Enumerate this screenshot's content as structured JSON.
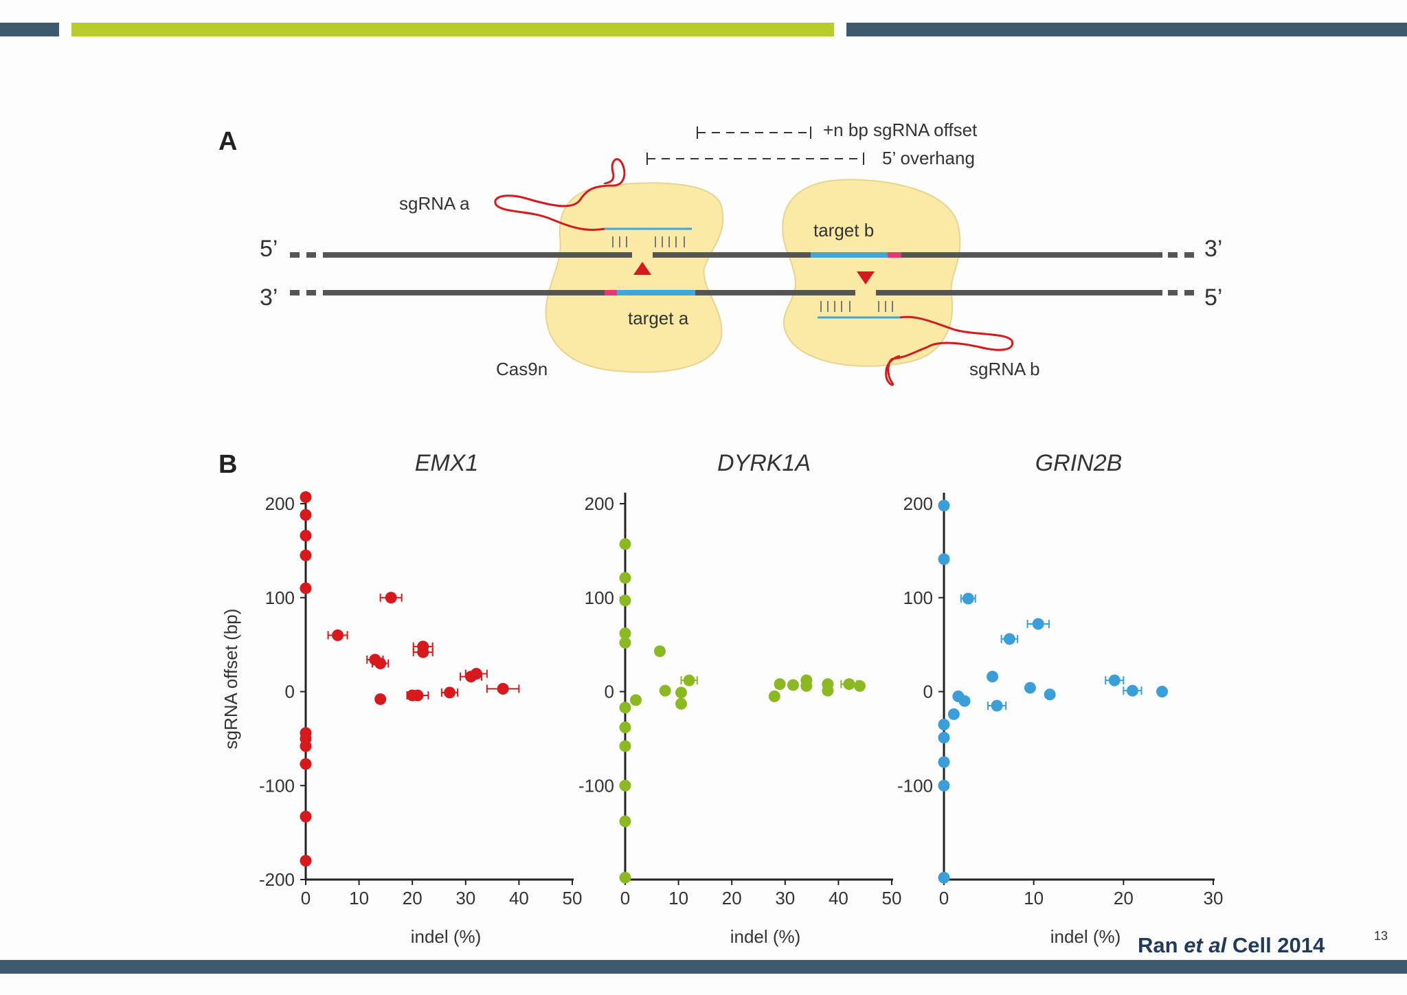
{
  "header_colors": {
    "dark": "#3d5a6e",
    "accent": "#b8cc2e"
  },
  "panel_a": {
    "label": "A",
    "sgrna_offset_label": "+n bp sgRNA offset",
    "overhang_label": "5’ overhang",
    "sgrna_a": "sgRNA a",
    "sgrna_b": "sgRNA b",
    "target_a": "target a",
    "target_b": "target b",
    "cas9n": "Cas9n",
    "top_left": "5’",
    "top_right": "3’",
    "bottom_left": "3’",
    "bottom_right": "5’"
  },
  "panel_b": {
    "label": "B",
    "ylabel": "sgRNA offset (bp)"
  },
  "chart_data": [
    {
      "type": "scatter",
      "title": "EMX1",
      "xlabel": "indel (%)",
      "ylabel": "sgRNA offset (bp)",
      "xlim": [
        0,
        50
      ],
      "ylim": [
        -200,
        200
      ],
      "xticks": [
        0,
        10,
        20,
        30,
        40,
        50
      ],
      "yticks": [
        200,
        100,
        0,
        -100,
        -200
      ],
      "color": "#d7191c",
      "points": [
        {
          "x": 0,
          "y": 207
        },
        {
          "x": 0,
          "y": 188
        },
        {
          "x": 0,
          "y": 166
        },
        {
          "x": 0,
          "y": 145
        },
        {
          "x": 0,
          "y": 110
        },
        {
          "x": 16,
          "y": 100,
          "err": 2
        },
        {
          "x": 6,
          "y": 60,
          "err": 1.8
        },
        {
          "x": 22,
          "y": 48,
          "err": 1.8
        },
        {
          "x": 22,
          "y": 42,
          "err": 1.8
        },
        {
          "x": 13,
          "y": 34,
          "err": 1.5
        },
        {
          "x": 14,
          "y": 30,
          "err": 1.5
        },
        {
          "x": 32,
          "y": 19,
          "err": 2
        },
        {
          "x": 31,
          "y": 16,
          "err": 2
        },
        {
          "x": 37,
          "y": 3,
          "err": 3
        },
        {
          "x": 27,
          "y": -1,
          "err": 1.5
        },
        {
          "x": 21,
          "y": -4,
          "err": 2
        },
        {
          "x": 20,
          "y": -4
        },
        {
          "x": 14,
          "y": -8
        },
        {
          "x": 0,
          "y": -44
        },
        {
          "x": 0,
          "y": -50
        },
        {
          "x": 0,
          "y": -58
        },
        {
          "x": 0,
          "y": -77
        },
        {
          "x": 0,
          "y": -133
        },
        {
          "x": 0,
          "y": -180
        }
      ]
    },
    {
      "type": "scatter",
      "title": "DYRK1A",
      "xlabel": "indel (%)",
      "ylabel": "",
      "xlim": [
        0,
        50
      ],
      "ylim": [
        -200,
        200
      ],
      "xticks": [
        0,
        10,
        20,
        30,
        40,
        50
      ],
      "yticks": [
        200,
        100,
        0,
        -100
      ],
      "color": "#8ab922",
      "points": [
        {
          "x": 0,
          "y": 157
        },
        {
          "x": 0,
          "y": 121
        },
        {
          "x": 0,
          "y": 97
        },
        {
          "x": 0,
          "y": 62
        },
        {
          "x": 0,
          "y": 52
        },
        {
          "x": 6.5,
          "y": 43
        },
        {
          "x": 12,
          "y": 12,
          "err": 1.5
        },
        {
          "x": 7.5,
          "y": 1
        },
        {
          "x": 10.5,
          "y": -1
        },
        {
          "x": 10.5,
          "y": -13
        },
        {
          "x": 2,
          "y": -9
        },
        {
          "x": 0,
          "y": -17
        },
        {
          "x": 0,
          "y": -38
        },
        {
          "x": 0,
          "y": -58
        },
        {
          "x": 0,
          "y": -100
        },
        {
          "x": 0,
          "y": -138
        },
        {
          "x": 0,
          "y": -198
        },
        {
          "x": 28,
          "y": -5
        },
        {
          "x": 29,
          "y": 8
        },
        {
          "x": 31.5,
          "y": 7
        },
        {
          "x": 34,
          "y": 12
        },
        {
          "x": 34,
          "y": 6
        },
        {
          "x": 38,
          "y": 8
        },
        {
          "x": 38,
          "y": 1
        },
        {
          "x": 42,
          "y": 8,
          "err": 1.5
        },
        {
          "x": 44,
          "y": 6
        }
      ]
    },
    {
      "type": "scatter",
      "title": "GRIN2B",
      "xlabel": "indel (%)",
      "ylabel": "",
      "xlim": [
        0,
        30
      ],
      "ylim": [
        -200,
        200
      ],
      "xticks": [
        0,
        10,
        20,
        30
      ],
      "yticks": [
        200,
        100,
        0,
        -100
      ],
      "color": "#3a9fd8",
      "points": [
        {
          "x": 0,
          "y": 198
        },
        {
          "x": 0,
          "y": 141
        },
        {
          "x": 2.7,
          "y": 99,
          "err": 0.8
        },
        {
          "x": 10.5,
          "y": 72,
          "err": 1.2
        },
        {
          "x": 7.3,
          "y": 56,
          "err": 0.9
        },
        {
          "x": 5.4,
          "y": 16
        },
        {
          "x": 9.6,
          "y": 4
        },
        {
          "x": 11.8,
          "y": -3
        },
        {
          "x": 19,
          "y": 12,
          "err": 1
        },
        {
          "x": 21,
          "y": 1,
          "err": 1
        },
        {
          "x": 24.3,
          "y": 0
        },
        {
          "x": 1.6,
          "y": -5
        },
        {
          "x": 2.3,
          "y": -10
        },
        {
          "x": 5.9,
          "y": -15,
          "err": 1
        },
        {
          "x": 1.1,
          "y": -24
        },
        {
          "x": 0,
          "y": -35
        },
        {
          "x": 0,
          "y": -49
        },
        {
          "x": 0,
          "y": -75
        },
        {
          "x": 0,
          "y": -100
        },
        {
          "x": 0,
          "y": -198
        }
      ]
    }
  ],
  "citation": {
    "author": "Ran ",
    "etal": "et al",
    "journal": " Cell 2014"
  },
  "page_number": "13"
}
